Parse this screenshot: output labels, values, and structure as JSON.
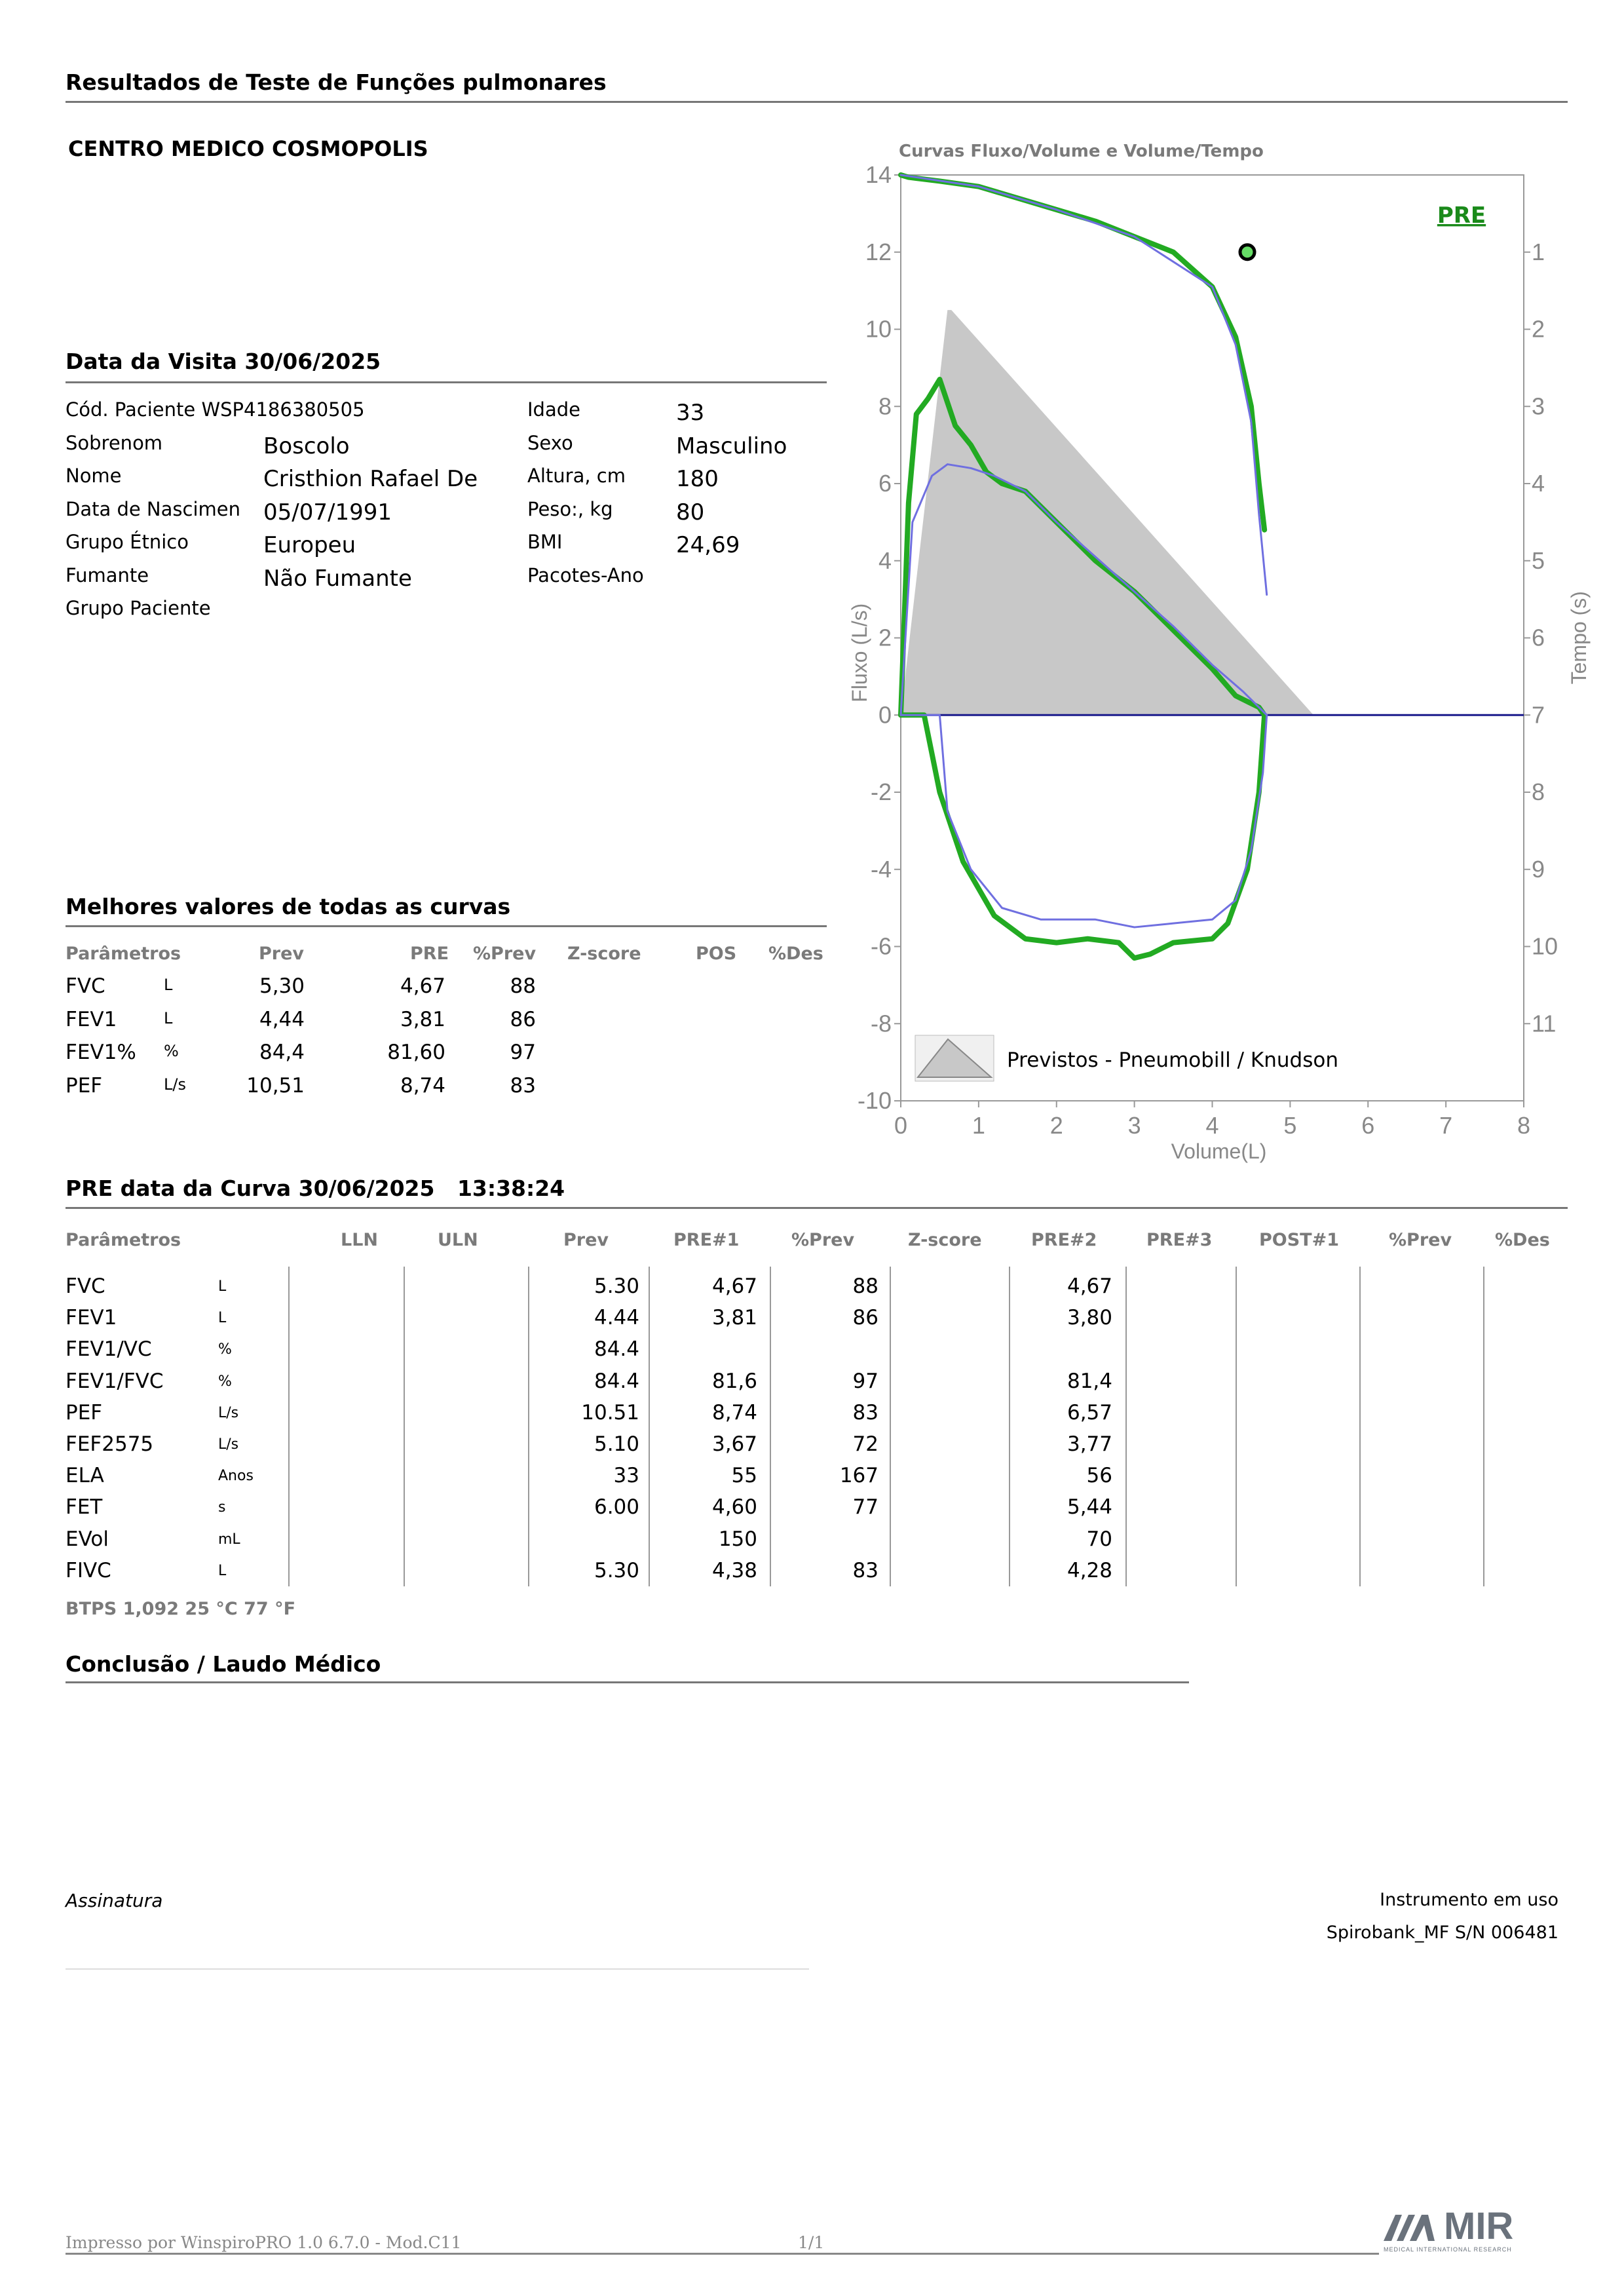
{
  "header": {
    "report_title": "Resultados de Teste de Funções pulmonares",
    "center_name": "CENTRO MEDICO COSMOPOLIS"
  },
  "visit": {
    "title": "Data da Visita 30/06/2025",
    "fields_left": [
      {
        "label": "Cód. Paciente WSP4186380505",
        "value": ""
      },
      {
        "label": "Sobrenom",
        "value": "Boscolo"
      },
      {
        "label": "Nome",
        "value": "Cristhion Rafael De"
      },
      {
        "label": "Data de Nascimen",
        "value": "05/07/1991"
      },
      {
        "label": "Grupo Étnico",
        "value": "Europeu"
      },
      {
        "label": "Fumante",
        "value": "Não Fumante"
      },
      {
        "label": "Grupo Paciente",
        "value": ""
      }
    ],
    "fields_right": [
      {
        "label": "Idade",
        "value": "33"
      },
      {
        "label": "Sexo",
        "value": "Masculino"
      },
      {
        "label": "Altura, cm",
        "value": "180"
      },
      {
        "label": "Peso:, kg",
        "value": "80"
      },
      {
        "label": "BMI",
        "value": "24,69"
      },
      {
        "label": "Pacotes-Ano",
        "value": ""
      }
    ]
  },
  "best_values": {
    "title": "Melhores valores de todas as curvas",
    "headers": [
      "Parâmetros",
      "Prev",
      "PRE",
      "%Prev",
      "Z-score",
      "POS",
      "%Des"
    ],
    "rows": [
      {
        "param": "FVC",
        "unit": "L",
        "prev": "5,30",
        "pre": "4,67",
        "pct": "88"
      },
      {
        "param": "FEV1",
        "unit": "L",
        "prev": "4,44",
        "pre": "3,81",
        "pct": "86"
      },
      {
        "param": "FEV1%",
        "unit": "%",
        "prev": "84,4",
        "pre": "81,60",
        "pct": "97"
      },
      {
        "param": "PEF",
        "unit": "L/s",
        "prev": "10,51",
        "pre": "8,74",
        "pct": "83"
      }
    ]
  },
  "curve": {
    "title": "PRE data da Curva 30/06/2025",
    "time": "13:38:24",
    "headers": [
      "Parâmetros",
      "LLN",
      "ULN",
      "Prev",
      "PRE#1",
      "%Prev",
      "Z-score",
      "PRE#2",
      "PRE#3",
      "POST#1",
      "%Prev",
      "%Des"
    ],
    "rows": [
      {
        "param": "FVC",
        "unit": "L",
        "prev": "5.30",
        "pre1": "4,67",
        "pct": "88",
        "pre2": "4,67"
      },
      {
        "param": "FEV1",
        "unit": "L",
        "prev": "4.44",
        "pre1": "3,81",
        "pct": "86",
        "pre2": "3,80"
      },
      {
        "param": "FEV1/VC",
        "unit": "%",
        "prev": "84.4",
        "pre1": "",
        "pct": "",
        "pre2": ""
      },
      {
        "param": "FEV1/FVC",
        "unit": "%",
        "prev": "84.4",
        "pre1": "81,6",
        "pct": "97",
        "pre2": "81,4"
      },
      {
        "param": "PEF",
        "unit": "L/s",
        "prev": "10.51",
        "pre1": "8,74",
        "pct": "83",
        "pre2": "6,57"
      },
      {
        "param": "FEF2575",
        "unit": "L/s",
        "prev": "5.10",
        "pre1": "3,67",
        "pct": "72",
        "pre2": "3,77"
      },
      {
        "param": "ELA",
        "unit": "Anos",
        "prev": "33",
        "pre1": "55",
        "pct": "167",
        "pre2": "56"
      },
      {
        "param": "FET",
        "unit": "s",
        "prev": "6.00",
        "pre1": "4,60",
        "pct": "77",
        "pre2": "5,44"
      },
      {
        "param": "EVol",
        "unit": "mL",
        "prev": "",
        "pre1": "150",
        "pct": "",
        "pre2": "70"
      },
      {
        "param": "FIVC",
        "unit": "L",
        "prev": "5.30",
        "pre1": "4,38",
        "pct": "83",
        "pre2": "4,28"
      }
    ],
    "btps": "BTPS  1,092  25 °C  77 °F"
  },
  "conclusion": {
    "title": "Conclusão / Laudo Médico"
  },
  "signature": {
    "label": "Assinatura"
  },
  "instrument": {
    "label": "Instrumento em uso",
    "value": "Spirobank_MF S/N 006481"
  },
  "footer": {
    "printed_by": "Impresso por WinspiroPRO 1.0 6.7.0 - Mod.C11",
    "page": "1/1",
    "logo_text": "MIR",
    "logo_sub": "MEDICAL INTERNATIONAL RESEARCH"
  },
  "chart_data": {
    "type": "line",
    "title": "Curvas Fluxo/Volume e Volume/Tempo",
    "xlabel": "Volume(L)",
    "ylabel": "Fluxo (L/s)",
    "y2label": "Tempo (s)",
    "xlim": [
      0,
      8
    ],
    "ylim": [
      -10,
      14
    ],
    "y2lim": [
      0,
      11
    ],
    "xticks": [
      "0",
      "1",
      "2",
      "3",
      "4",
      "5",
      "6",
      "7",
      "8"
    ],
    "yticks": [
      "14",
      "12",
      "10",
      "8",
      "6",
      "4",
      "2",
      "0",
      "-2",
      "-4",
      "-6",
      "-8",
      "-10"
    ],
    "y2ticks": [
      "1",
      "2",
      "3",
      "4",
      "5",
      "6",
      "7",
      "8",
      "9",
      "10",
      "11"
    ],
    "badge": "PRE",
    "legend": "Previstos - Pneumobill / Knudson",
    "colors": {
      "pre": "#22aa22",
      "second": "#6f6fe0",
      "predicted": "#c8c8c8",
      "axis": "#888888",
      "zero": "#1a1a8c"
    },
    "predicted_area": [
      [
        0,
        0
      ],
      [
        0.6,
        10.5
      ],
      [
        0.65,
        10.5
      ],
      [
        5.3,
        0
      ]
    ],
    "series": [
      {
        "role": "pre",
        "points": [
          [
            0,
            0
          ],
          [
            0.1,
            5.5
          ],
          [
            0.2,
            7.8
          ],
          [
            0.35,
            8.2
          ],
          [
            0.5,
            8.7
          ],
          [
            0.7,
            7.5
          ],
          [
            0.9,
            7.0
          ],
          [
            1.1,
            6.3
          ],
          [
            1.3,
            6.0
          ],
          [
            1.6,
            5.8
          ],
          [
            2.0,
            5.0
          ],
          [
            2.5,
            4.0
          ],
          [
            3.0,
            3.2
          ],
          [
            3.5,
            2.2
          ],
          [
            4.0,
            1.2
          ],
          [
            4.3,
            0.5
          ],
          [
            4.6,
            0.2
          ],
          [
            4.67,
            0
          ]
        ]
      },
      {
        "role": "pre",
        "points": [
          [
            0,
            0
          ],
          [
            0.3,
            0
          ],
          [
            0.5,
            -2.0
          ],
          [
            0.8,
            -3.8
          ],
          [
            1.2,
            -5.2
          ],
          [
            1.6,
            -5.8
          ],
          [
            2.0,
            -5.9
          ],
          [
            2.4,
            -5.8
          ],
          [
            2.8,
            -5.9
          ],
          [
            3.0,
            -6.3
          ],
          [
            3.2,
            -6.2
          ],
          [
            3.5,
            -5.9
          ],
          [
            4.0,
            -5.8
          ],
          [
            4.2,
            -5.4
          ],
          [
            4.45,
            -4.0
          ],
          [
            4.6,
            -2.0
          ],
          [
            4.67,
            0
          ]
        ]
      },
      {
        "role": "second",
        "points": [
          [
            0,
            0
          ],
          [
            0.15,
            5.0
          ],
          [
            0.4,
            6.2
          ],
          [
            0.6,
            6.5
          ],
          [
            0.9,
            6.4
          ],
          [
            1.2,
            6.2
          ],
          [
            1.6,
            5.8
          ],
          [
            2.0,
            5.0
          ],
          [
            2.5,
            4.1
          ],
          [
            3.0,
            3.2
          ],
          [
            3.5,
            2.3
          ],
          [
            4.0,
            1.3
          ],
          [
            4.4,
            0.6
          ],
          [
            4.7,
            0
          ]
        ]
      },
      {
        "role": "second",
        "points": [
          [
            0,
            0
          ],
          [
            0.5,
            0
          ],
          [
            0.6,
            -2.5
          ],
          [
            0.9,
            -4.0
          ],
          [
            1.3,
            -5.0
          ],
          [
            1.8,
            -5.3
          ],
          [
            2.5,
            -5.3
          ],
          [
            3.0,
            -5.5
          ],
          [
            3.5,
            -5.4
          ],
          [
            4.0,
            -5.3
          ],
          [
            4.3,
            -4.8
          ],
          [
            4.5,
            -3.5
          ],
          [
            4.65,
            -1.5
          ],
          [
            4.7,
            0
          ]
        ]
      },
      {
        "role": "pre-time",
        "points": [
          [
            0,
            0
          ],
          [
            0.1,
            0.03
          ],
          [
            0.5,
            0.08
          ],
          [
            1.0,
            0.15
          ],
          [
            1.5,
            0.3
          ],
          [
            2.0,
            0.45
          ],
          [
            2.5,
            0.6
          ],
          [
            3.0,
            0.8
          ],
          [
            3.5,
            1.0
          ],
          [
            4.0,
            1.45
          ],
          [
            4.3,
            2.1
          ],
          [
            4.5,
            3.0
          ],
          [
            4.6,
            4.0
          ],
          [
            4.67,
            4.6
          ]
        ]
      },
      {
        "role": "second-time",
        "points": [
          [
            0,
            0
          ],
          [
            1.0,
            0.15
          ],
          [
            2.0,
            0.45
          ],
          [
            3.0,
            0.8
          ],
          [
            4.0,
            1.45
          ],
          [
            4.3,
            2.2
          ],
          [
            4.5,
            3.2
          ],
          [
            4.6,
            4.4
          ],
          [
            4.7,
            5.44
          ]
        ]
      }
    ],
    "marker": {
      "x": 4.45,
      "time_s": 1.0
    }
  }
}
